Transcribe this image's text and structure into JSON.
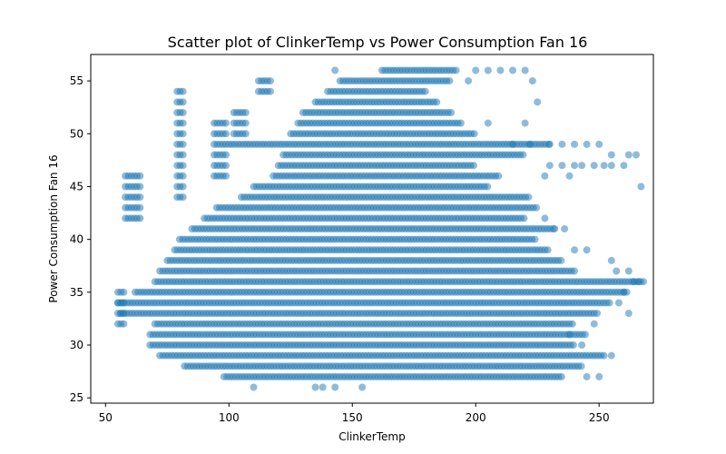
{
  "chart_data": {
    "type": "scatter",
    "title": "Scatter plot of ClinkerTemp vs Power Consumption Fan 16",
    "xlabel": "ClinkerTemp",
    "ylabel": "Power Consumption Fan 16",
    "xlim": [
      44,
      272
    ],
    "ylim": [
      24.5,
      57.5
    ],
    "xticks": [
      50,
      100,
      150,
      200,
      250
    ],
    "yticks": [
      25,
      30,
      35,
      40,
      45,
      50,
      55
    ],
    "grid": false,
    "marker_color": "#1f77b4",
    "marker_alpha": 0.5,
    "y_levels": [
      27,
      28,
      29,
      30,
      31,
      32,
      33,
      34,
      35,
      36,
      37,
      38,
      39,
      40,
      41,
      42,
      43,
      44,
      45,
      46,
      47,
      48,
      49,
      50,
      51,
      52,
      53,
      54,
      55,
      56
    ],
    "level_ranges": [
      {
        "y": 27,
        "x": [
          98,
          235
        ]
      },
      {
        "y": 28,
        "x": [
          82,
          243
        ]
      },
      {
        "y": 29,
        "x": [
          72,
          252
        ]
      },
      {
        "y": 30,
        "x": [
          68,
          240
        ]
      },
      {
        "y": 31,
        "x": [
          68,
          245
        ]
      },
      {
        "y": 32,
        "x": [
          70,
          240
        ]
      },
      {
        "y": 33,
        "x": [
          56,
          250
        ]
      },
      {
        "y": 34,
        "x": [
          55,
          255
        ]
      },
      {
        "y": 35,
        "x": [
          62,
          262
        ]
      },
      {
        "y": 36,
        "x": [
          70,
          268
        ]
      },
      {
        "y": 37,
        "x": [
          72,
          240
        ]
      },
      {
        "y": 38,
        "x": [
          75,
          235
        ]
      },
      {
        "y": 39,
        "x": [
          78,
          230
        ]
      },
      {
        "y": 40,
        "x": [
          80,
          225
        ]
      },
      {
        "y": 41,
        "x": [
          85,
          232
        ]
      },
      {
        "y": 42,
        "x": [
          90,
          220
        ]
      },
      {
        "y": 43,
        "x": [
          95,
          225
        ]
      },
      {
        "y": 44,
        "x": [
          105,
          222
        ]
      },
      {
        "y": 45,
        "x": [
          110,
          205
        ]
      },
      {
        "y": 46,
        "x": [
          118,
          210
        ]
      },
      {
        "y": 47,
        "x": [
          120,
          200
        ]
      },
      {
        "y": 48,
        "x": [
          122,
          220
        ]
      },
      {
        "y": 49,
        "x": [
          100,
          230
        ]
      },
      {
        "y": 50,
        "x": [
          125,
          200
        ]
      },
      {
        "y": 51,
        "x": [
          128,
          195
        ]
      },
      {
        "y": 52,
        "x": [
          130,
          190
        ]
      },
      {
        "y": 53,
        "x": [
          135,
          185
        ]
      },
      {
        "y": 54,
        "x": [
          140,
          180
        ]
      },
      {
        "y": 55,
        "x": [
          145,
          190
        ]
      },
      {
        "y": 56,
        "x": [
          162,
          192
        ]
      }
    ],
    "clusters": [
      {
        "x": [
          58,
          65
        ],
        "y": [
          42,
          46
        ]
      },
      {
        "x": [
          55,
          58
        ],
        "y": [
          32,
          35
        ]
      },
      {
        "x": [
          79,
          82
        ],
        "y": [
          44,
          54
        ]
      },
      {
        "x": [
          94,
          100
        ],
        "y": [
          46,
          51
        ]
      },
      {
        "x": [
          102,
          108
        ],
        "y": [
          50,
          52
        ]
      },
      {
        "x": [
          112,
          118
        ],
        "y": [
          54,
          55
        ]
      }
    ],
    "outliers": [
      [
        110,
        26
      ],
      [
        135,
        26
      ],
      [
        138,
        26
      ],
      [
        143,
        26
      ],
      [
        154,
        26
      ],
      [
        143,
        56
      ],
      [
        197,
        55
      ],
      [
        200,
        56
      ],
      [
        205,
        56
      ],
      [
        210,
        56
      ],
      [
        215,
        56
      ],
      [
        220,
        56
      ],
      [
        223,
        55
      ],
      [
        225,
        53
      ],
      [
        220,
        51
      ],
      [
        205,
        51
      ],
      [
        215,
        49
      ],
      [
        222,
        49
      ],
      [
        230,
        49
      ],
      [
        235,
        49
      ],
      [
        240,
        49
      ],
      [
        245,
        49
      ],
      [
        250,
        49
      ],
      [
        255,
        48
      ],
      [
        260,
        47
      ],
      [
        262,
        48
      ],
      [
        265,
        48
      ],
      [
        267,
        45
      ],
      [
        228,
        46
      ],
      [
        230,
        47
      ],
      [
        235,
        47
      ],
      [
        240,
        47
      ],
      [
        243,
        47
      ],
      [
        248,
        47
      ],
      [
        252,
        47
      ],
      [
        255,
        47
      ],
      [
        238,
        46
      ],
      [
        228,
        42
      ],
      [
        232,
        41
      ],
      [
        236,
        41
      ],
      [
        240,
        39
      ],
      [
        245,
        39
      ],
      [
        255,
        38
      ],
      [
        262,
        37
      ],
      [
        264,
        36
      ],
      [
        266,
        36
      ],
      [
        260,
        35
      ],
      [
        258,
        34
      ],
      [
        248,
        32
      ],
      [
        238,
        31
      ],
      [
        243,
        30
      ],
      [
        255,
        29
      ],
      [
        250,
        27
      ],
      [
        245,
        27
      ],
      [
        262,
        33
      ],
      [
        257,
        37
      ]
    ]
  }
}
